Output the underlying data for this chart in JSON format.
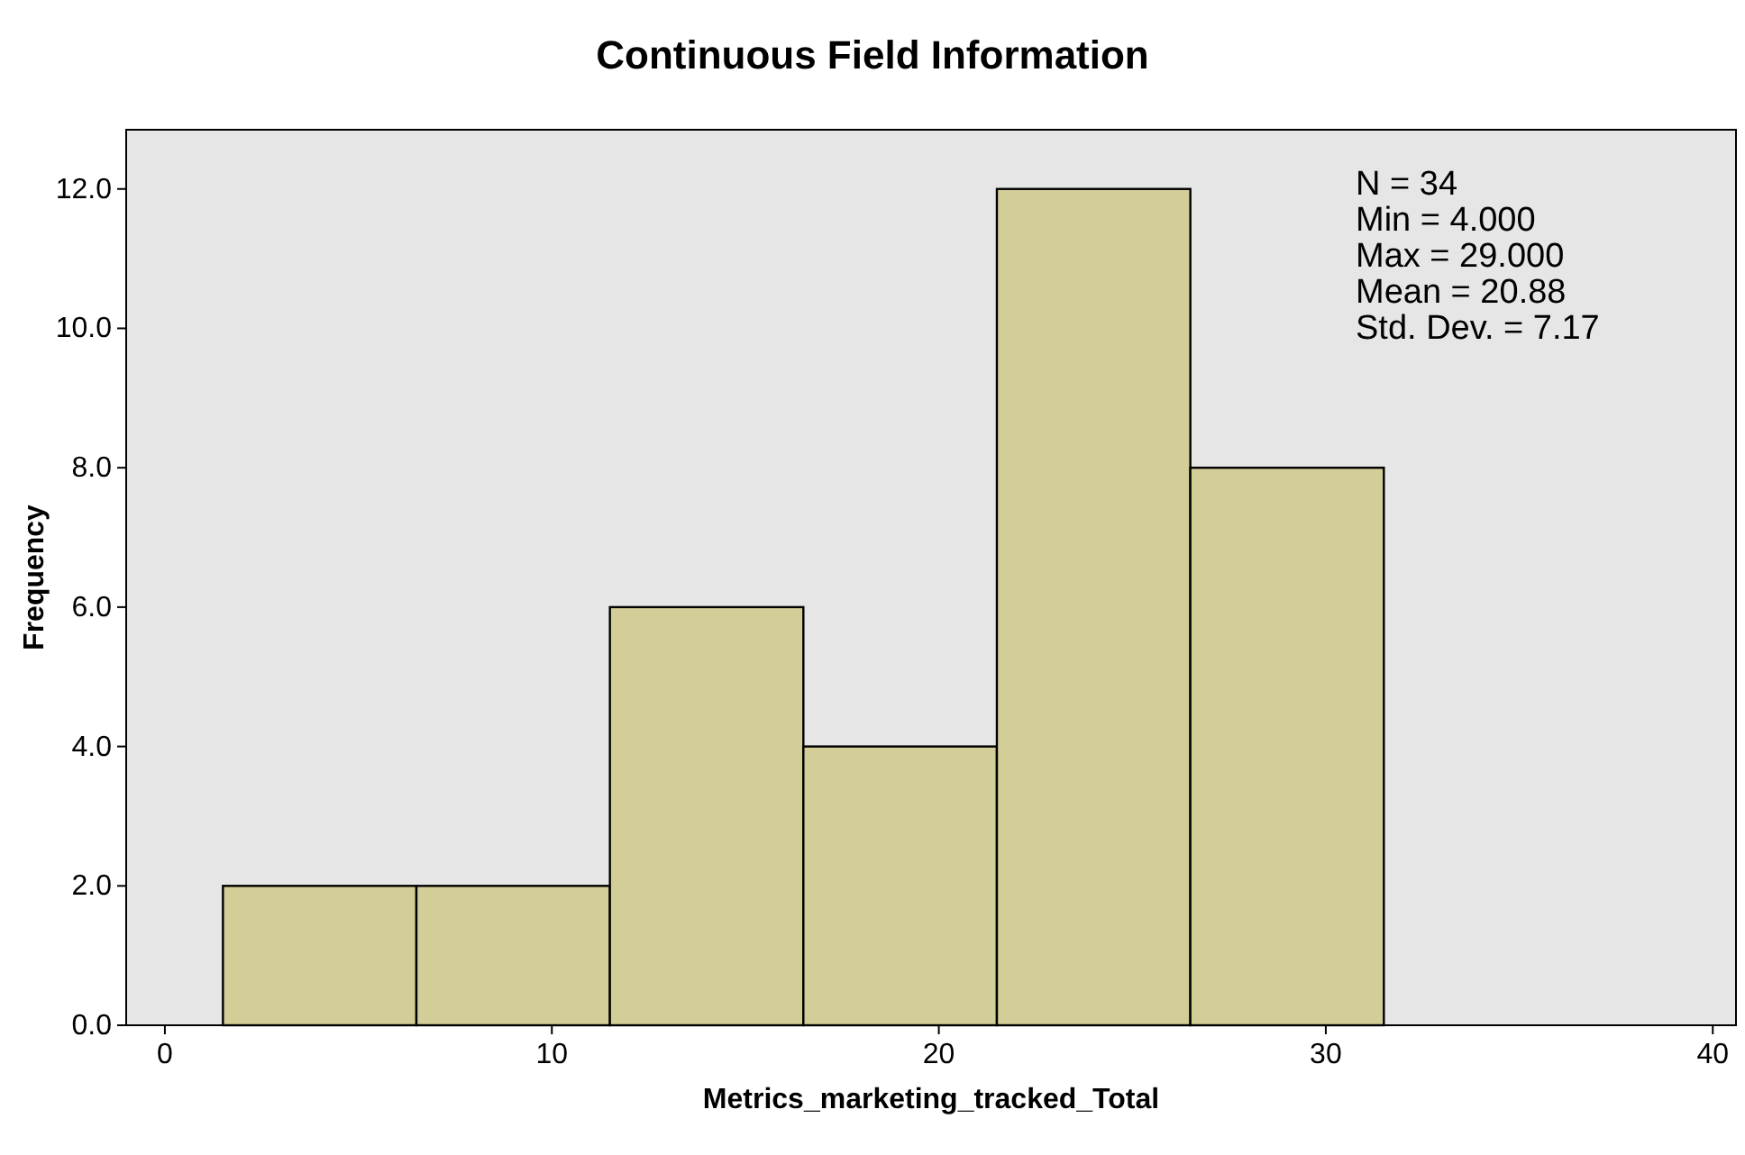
{
  "chart_data": {
    "type": "histogram",
    "title": "Continuous Field Information",
    "xlabel": "Metrics_marketing_tracked_Total",
    "ylabel": "Frequency",
    "bins": [
      1.5,
      6.5,
      11.5,
      16.5,
      21.5,
      26.5,
      31.5
    ],
    "values": [
      2,
      2,
      6,
      4,
      12,
      8
    ],
    "color": "#d3ce97",
    "xlim": [
      -1,
      40.6
    ],
    "xticks": [
      0,
      10,
      20,
      30,
      40
    ],
    "ylim": [
      0,
      12.85
    ],
    "yticks": [
      {
        "value": 0,
        "label": "0.0"
      },
      {
        "value": 2,
        "label": "2.0"
      },
      {
        "value": 4,
        "label": "4.0"
      },
      {
        "value": 6,
        "label": "6.0"
      },
      {
        "value": 8,
        "label": "8.0"
      },
      {
        "value": 10,
        "label": "10.0"
      },
      {
        "value": 12,
        "label": "12.0"
      }
    ],
    "grid": false,
    "annotations": [
      "N = 34",
      "Min = 4.000",
      "Max = 29.000",
      "Mean = 20.88",
      "Std. Dev. = 7.17"
    ]
  }
}
